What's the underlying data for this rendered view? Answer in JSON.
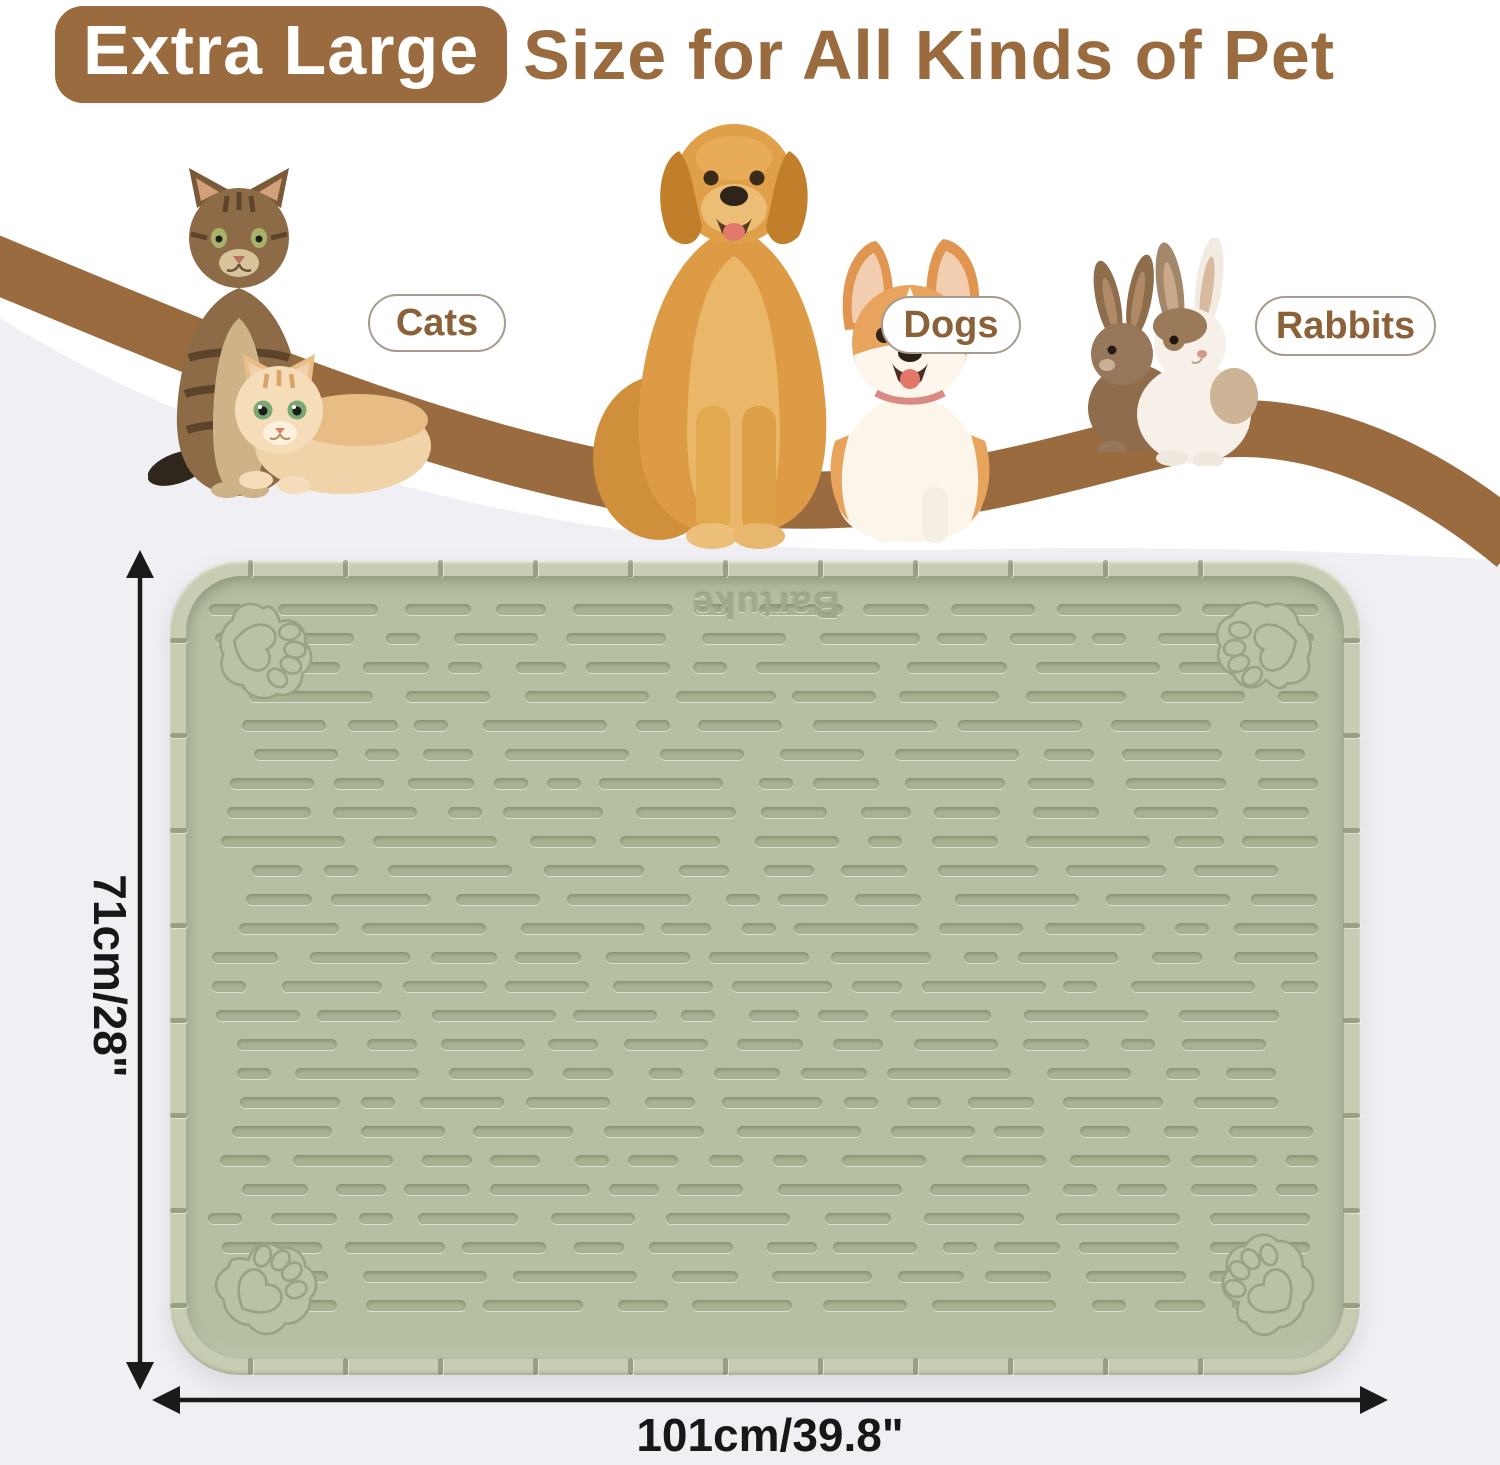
{
  "title": {
    "badge": "Extra Large",
    "rest": "Size for All Kinds of Pet"
  },
  "pets": [
    {
      "label": "Cats"
    },
    {
      "label": "Dogs"
    },
    {
      "label": "Rabbits"
    }
  ],
  "mat": {
    "brand": "Bartuke"
  },
  "dimensions": {
    "height_label": "71cm/28\"",
    "width_label": "101cm/39.8\""
  },
  "colors": {
    "brand_brown": "#9a6b3f",
    "label_brown": "#8a6138",
    "mat_green": "#b5bfa2",
    "mat_rim": "#c6cdb2",
    "bg_gray": "#f0eff3",
    "arrow_black": "#1a1a1a"
  }
}
